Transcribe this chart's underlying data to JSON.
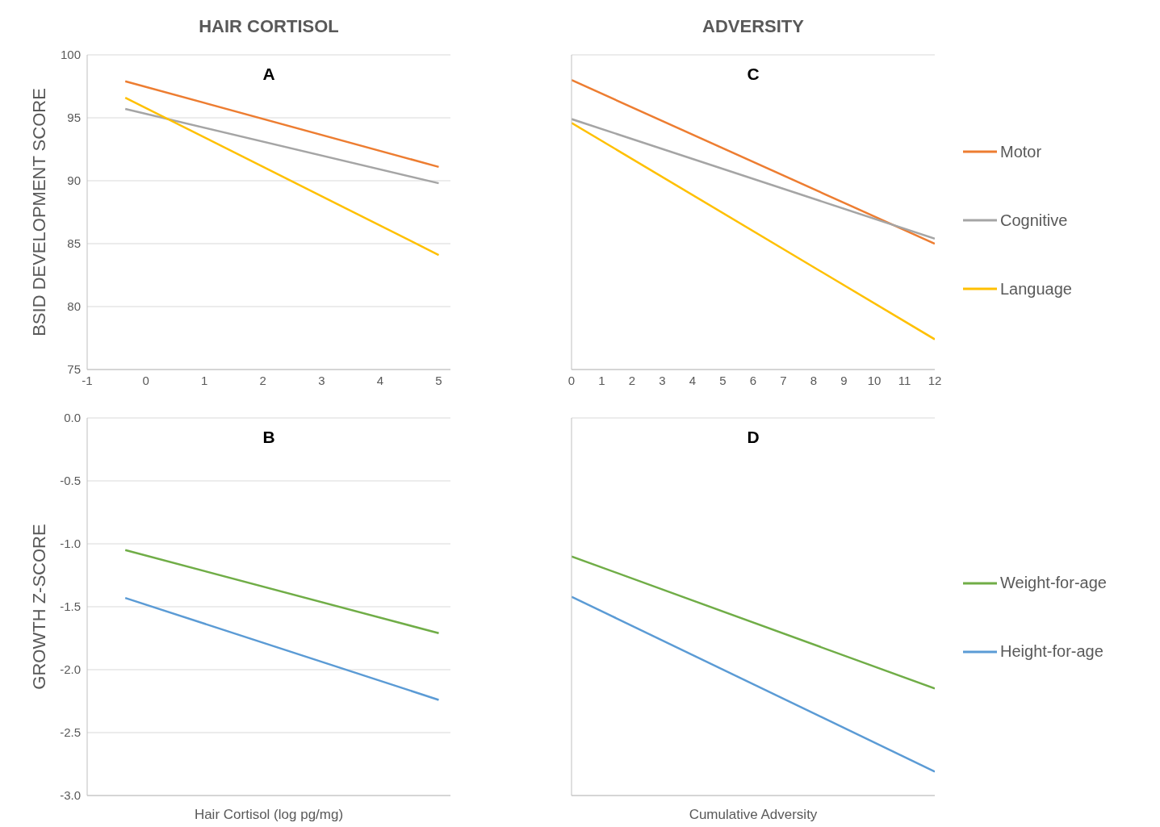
{
  "chart_data": [
    {
      "type": "line",
      "title": "HAIR CORTISOL",
      "ylabel": "BSID DEVELOPMENT SCORE",
      "annotations": [
        "A"
      ],
      "x": [
        -0.35,
        5
      ],
      "xlim": [
        -1,
        5.2
      ],
      "xticks": [
        -1,
        0,
        1,
        2,
        3,
        4,
        5
      ],
      "ylim": [
        75,
        100
      ],
      "yticks": [
        75,
        80,
        85,
        90,
        95,
        100
      ],
      "grid": "y",
      "series": [
        {
          "color": "#ed7d31",
          "values": [
            97.9,
            91.1
          ]
        },
        {
          "color": "#a5a5a5",
          "values": [
            95.7,
            89.8
          ]
        },
        {
          "color": "#ffc000",
          "values": [
            96.6,
            84.1
          ]
        }
      ]
    },
    {
      "type": "line",
      "title": "ADVERSITY",
      "annotations": [
        "C"
      ],
      "x": [
        0,
        12
      ],
      "xlim": [
        0,
        12
      ],
      "xticks": [
        0,
        1,
        2,
        3,
        4,
        5,
        6,
        7,
        8,
        9,
        10,
        11,
        12
      ],
      "ylim": [
        75,
        100
      ],
      "yticks": [
        75,
        80,
        85,
        90,
        95,
        100
      ],
      "grid": "y",
      "tick_labels": "x",
      "legend": "right",
      "series": [
        {
          "name": "Motor",
          "color": "#ed7d31",
          "values": [
            98,
            85
          ]
        },
        {
          "name": "Cognitive",
          "color": "#a5a5a5",
          "values": [
            94.9,
            85.4
          ]
        },
        {
          "name": "Language",
          "color": "#ffc000",
          "values": [
            94.6,
            77.4
          ]
        }
      ]
    },
    {
      "type": "line",
      "ylabel": "GROWTH Z-SCORE",
      "xlabel": "Hair Cortisol (log pg/mg)",
      "annotations": [
        "B"
      ],
      "x": [
        -0.35,
        5
      ],
      "xlim": [
        -1,
        5.2
      ],
      "ylim": [
        -3,
        0
      ],
      "yticks": [
        {
          "value": -3,
          "label": "-3.0"
        },
        {
          "value": -2.5,
          "label": "-2.5"
        },
        {
          "value": -2,
          "label": "-2.0"
        },
        {
          "value": -1.5,
          "label": "-1.5"
        },
        {
          "value": -1,
          "label": "-1.0"
        },
        {
          "value": -0.5,
          "label": "-0.5"
        },
        {
          "value": 0,
          "label": "0.0"
        }
      ],
      "grid": "y",
      "tick_labels": "y",
      "series": [
        {
          "color": "#70ad47",
          "values": [
            -1.05,
            -1.71
          ]
        },
        {
          "color": "#5b9bd5",
          "values": [
            -1.43,
            -2.24
          ]
        }
      ]
    },
    {
      "type": "line",
      "xlabel": "Cumulative Adversity",
      "annotations": [
        "D"
      ],
      "x": [
        0,
        12
      ],
      "xlim": [
        0,
        12
      ],
      "ylim": [
        -3,
        0
      ],
      "yticks": [
        -3,
        -2.5,
        -2,
        -1.5,
        -1,
        -0.5,
        0
      ],
      "grid": "y",
      "tick_labels": false,
      "legend": "right",
      "series": [
        {
          "name": "Weight-for-age",
          "color": "#70ad47",
          "values": [
            -1.1,
            -2.15
          ]
        },
        {
          "name": "Height-for-age",
          "color": "#5b9bd5",
          "values": [
            -1.42,
            -2.81
          ]
        }
      ]
    }
  ]
}
